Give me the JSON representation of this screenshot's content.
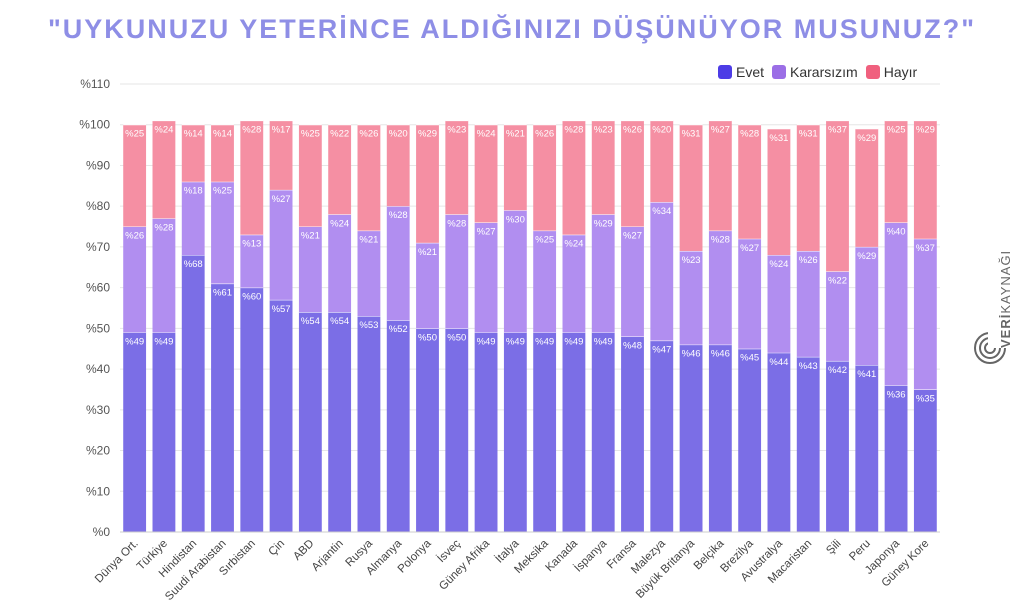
{
  "title": "\"UYKUNUZU YETERİNCE ALDIĞINIZI DÜŞÜNÜYOR MUSUNUZ?\"",
  "watermark": {
    "bold": "VERİ",
    "rest": "KAYNAĞI"
  },
  "chart_data": {
    "type": "bar",
    "stacked": true,
    "title": "\"UYKUNUZU YETERİNCE ALDIĞINIZI DÜŞÜNÜYOR MUSUNUZ?\"",
    "xlabel": "",
    "ylabel": "",
    "ylim": [
      0,
      110
    ],
    "yticks": [
      "%0",
      "%10",
      "%20",
      "%30",
      "%40",
      "%50",
      "%60",
      "%70",
      "%80",
      "%90",
      "%100",
      "%110"
    ],
    "grid": true,
    "legend_position": "top-right",
    "categories": [
      "Dünya Ort.",
      "Türkiye",
      "Hindistan",
      "Suudi Arabistan",
      "Sırbistan",
      "Çin",
      "ABD",
      "Arjantin",
      "Rusya",
      "Almanya",
      "Polonya",
      "İsveç",
      "Güney Afrika",
      "İtalya",
      "Meksika",
      "Kanada",
      "İspanya",
      "Fransa",
      "Malezya",
      "Büyük Britanya",
      "Belçika",
      "Brezilya",
      "Avustralya",
      "Macaristan",
      "Şili",
      "Peru",
      "Japonya",
      "Güney Kore"
    ],
    "series": [
      {
        "name": "Evet",
        "color": "#7b6ee6",
        "legend_color": "#4d3ce6",
        "values": [
          49,
          49,
          68,
          61,
          60,
          57,
          54,
          54,
          53,
          52,
          50,
          50,
          49,
          49,
          49,
          49,
          49,
          48,
          47,
          46,
          46,
          45,
          44,
          43,
          42,
          41,
          36,
          35
        ],
        "labels": [
          "%49",
          "%49",
          "%68",
          "%61",
          "%60",
          "%57",
          "%54",
          "%54",
          "%53",
          "%52",
          "%50",
          "%50",
          "%49",
          "%49",
          "%49",
          "%49",
          "%49",
          "%48",
          "%47",
          "%46",
          "%46",
          "%45",
          "%44",
          "%43",
          "%42",
          "%41",
          "%36",
          "%35"
        ]
      },
      {
        "name": "Kararsızım",
        "color": "#b18ef0",
        "legend_color": "#9b6ee6",
        "values": [
          26,
          28,
          18,
          25,
          13,
          27,
          21,
          24,
          21,
          28,
          21,
          28,
          27,
          30,
          25,
          24,
          29,
          27,
          34,
          23,
          28,
          27,
          24,
          26,
          22,
          29,
          40,
          37
        ],
        "labels": [
          "%26",
          "%28",
          "%18",
          "%25",
          "%13",
          "%27",
          "%21",
          "%24",
          "%21",
          "%28",
          "%21",
          "%28",
          "%27",
          "%30",
          "%25",
          "%24",
          "%29",
          "%27",
          "%34",
          "%23",
          "%28",
          "%27",
          "%24",
          "%26",
          "%22",
          "%29",
          "%40",
          "%37"
        ]
      },
      {
        "name": "Hayır",
        "color": "#f58fa3",
        "legend_color": "#f0607e",
        "values": [
          25,
          24,
          14,
          14,
          28,
          17,
          25,
          22,
          26,
          20,
          29,
          23,
          24,
          21,
          26,
          28,
          23,
          26,
          20,
          31,
          27,
          28,
          31,
          31,
          37,
          29,
          25,
          29
        ],
        "labels": [
          "%25",
          "%24",
          "%14",
          "%14",
          "%28",
          "%17",
          "%25",
          "%22",
          "%26",
          "%20",
          "%29",
          "%23",
          "%24",
          "%21",
          "%26",
          "%28",
          "%23",
          "%26",
          "%20",
          "%31",
          "%27",
          "%28",
          "%31",
          "%31",
          "%37",
          "%29",
          "%25",
          "%29"
        ]
      }
    ]
  }
}
